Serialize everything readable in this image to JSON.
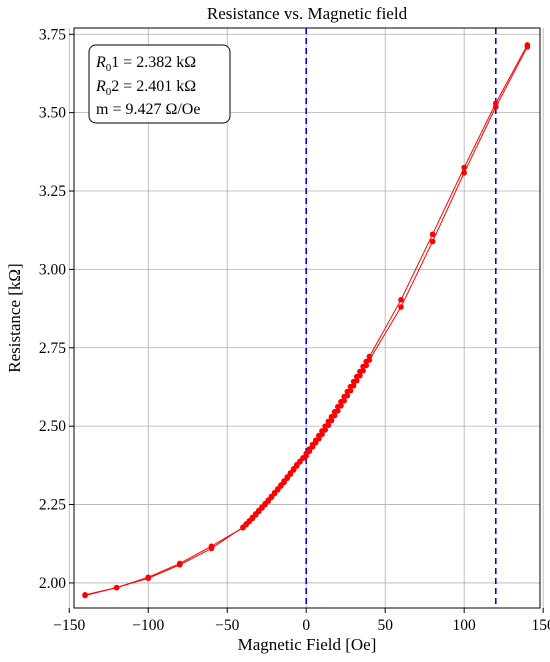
{
  "chart_data": {
    "type": "line",
    "title": "Resistance vs. Magnetic field",
    "xlabel": "Magnetic Field [Oe]",
    "ylabel": "Resistance [kΩ]",
    "xlim": [
      -147,
      148
    ],
    "ylim": [
      1.92,
      3.77
    ],
    "xticks": [
      -150,
      -100,
      -50,
      0,
      50,
      100,
      150
    ],
    "yticks": [
      2.0,
      2.25,
      2.5,
      2.75,
      3.0,
      3.25,
      3.5,
      3.75
    ],
    "xtick_labels": [
      "−150",
      "−100",
      "−50",
      "0",
      "50",
      "100",
      "150"
    ],
    "ytick_labels": [
      "2.00",
      "2.25",
      "2.50",
      "2.75",
      "3.00",
      "3.25",
      "3.50",
      "3.75"
    ],
    "grid": true,
    "series": [
      {
        "color": "#ff0000",
        "marker": "circle",
        "x": [
          -140,
          -120,
          -100,
          -80,
          -60,
          -40,
          -38,
          -36,
          -34,
          -32,
          -30,
          -28,
          -26,
          -24,
          -22,
          -20,
          -18,
          -16,
          -14,
          -12,
          -10,
          -8,
          -6,
          -4,
          -2,
          0,
          2,
          4,
          6,
          8,
          10,
          12,
          14,
          16,
          18,
          20,
          22,
          24,
          26,
          28,
          30,
          32,
          34,
          36,
          38,
          40,
          60,
          80,
          100,
          120,
          140
        ],
        "y": [
          1.962,
          1.985,
          2.015,
          2.058,
          2.11,
          2.178,
          2.188,
          2.198,
          2.209,
          2.22,
          2.231,
          2.242,
          2.253,
          2.264,
          2.276,
          2.288,
          2.3,
          2.312,
          2.325,
          2.338,
          2.351,
          2.364,
          2.377,
          2.388,
          2.398,
          2.405,
          2.42,
          2.434,
          2.447,
          2.46,
          2.474,
          2.488,
          2.503,
          2.518,
          2.534,
          2.549,
          2.565,
          2.581,
          2.597,
          2.613,
          2.629,
          2.645,
          2.661,
          2.677,
          2.694,
          2.711,
          2.88,
          3.089,
          3.308,
          3.518,
          3.71
        ]
      },
      {
        "color": "#ff0000",
        "marker": "circle",
        "x": [
          140,
          120,
          100,
          80,
          60,
          40,
          38,
          36,
          34,
          32,
          30,
          28,
          26,
          24,
          22,
          20,
          18,
          16,
          14,
          12,
          10,
          8,
          6,
          4,
          2,
          0,
          -2,
          -4,
          -6,
          -8,
          -10,
          -12,
          -14,
          -16,
          -18,
          -20,
          -22,
          -24,
          -26,
          -28,
          -30,
          -32,
          -34,
          -36,
          -38,
          -40,
          -60,
          -80,
          -100,
          -120,
          -140
        ],
        "y": [
          3.716,
          3.53,
          3.325,
          3.112,
          2.903,
          2.722,
          2.706,
          2.69,
          2.674,
          2.658,
          2.642,
          2.626,
          2.61,
          2.594,
          2.578,
          2.562,
          2.546,
          2.53,
          2.515,
          2.5,
          2.485,
          2.47,
          2.455,
          2.441,
          2.427,
          2.413,
          2.399,
          2.386,
          2.373,
          2.36,
          2.347,
          2.334,
          2.321,
          2.309,
          2.297,
          2.285,
          2.273,
          2.261,
          2.25,
          2.239,
          2.228,
          2.217,
          2.206,
          2.196,
          2.186,
          2.176,
          2.117,
          2.062,
          2.018,
          1.985,
          1.96
        ]
      }
    ],
    "vlines": [
      {
        "x": 0,
        "color": "#0000ee",
        "style": "dashed"
      },
      {
        "x": 120,
        "color": "#0000ee",
        "style": "dashed"
      }
    ],
    "annotation": {
      "line1_var": "R",
      "line1_sub": "0",
      "line1_rest": "1 = 2.382 kΩ",
      "line2_var": "R",
      "line2_sub": "0",
      "line2_rest": "2 = 2.401 kΩ",
      "line3": "m = 9.427 Ω/Oe",
      "placement": "top-left"
    }
  }
}
